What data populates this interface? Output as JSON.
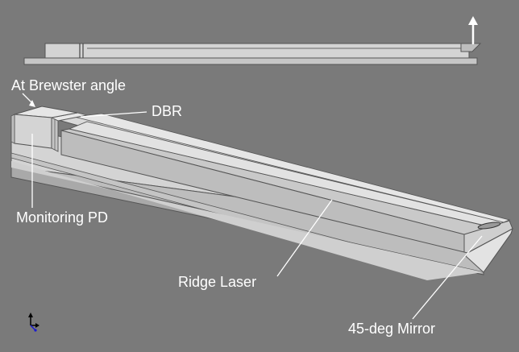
{
  "diagram": {
    "background_color": "#7a7a7a",
    "label_color": "#ffffff",
    "labels": {
      "brewster": "At Brewster angle",
      "dbr": "DBR",
      "monitoring_pd": "Monitoring PD",
      "ridge_laser": "Ridge Laser",
      "mirror": "45-deg Mirror"
    },
    "icons": [
      "up-arrow-icon",
      "axis-triad-icon"
    ]
  }
}
